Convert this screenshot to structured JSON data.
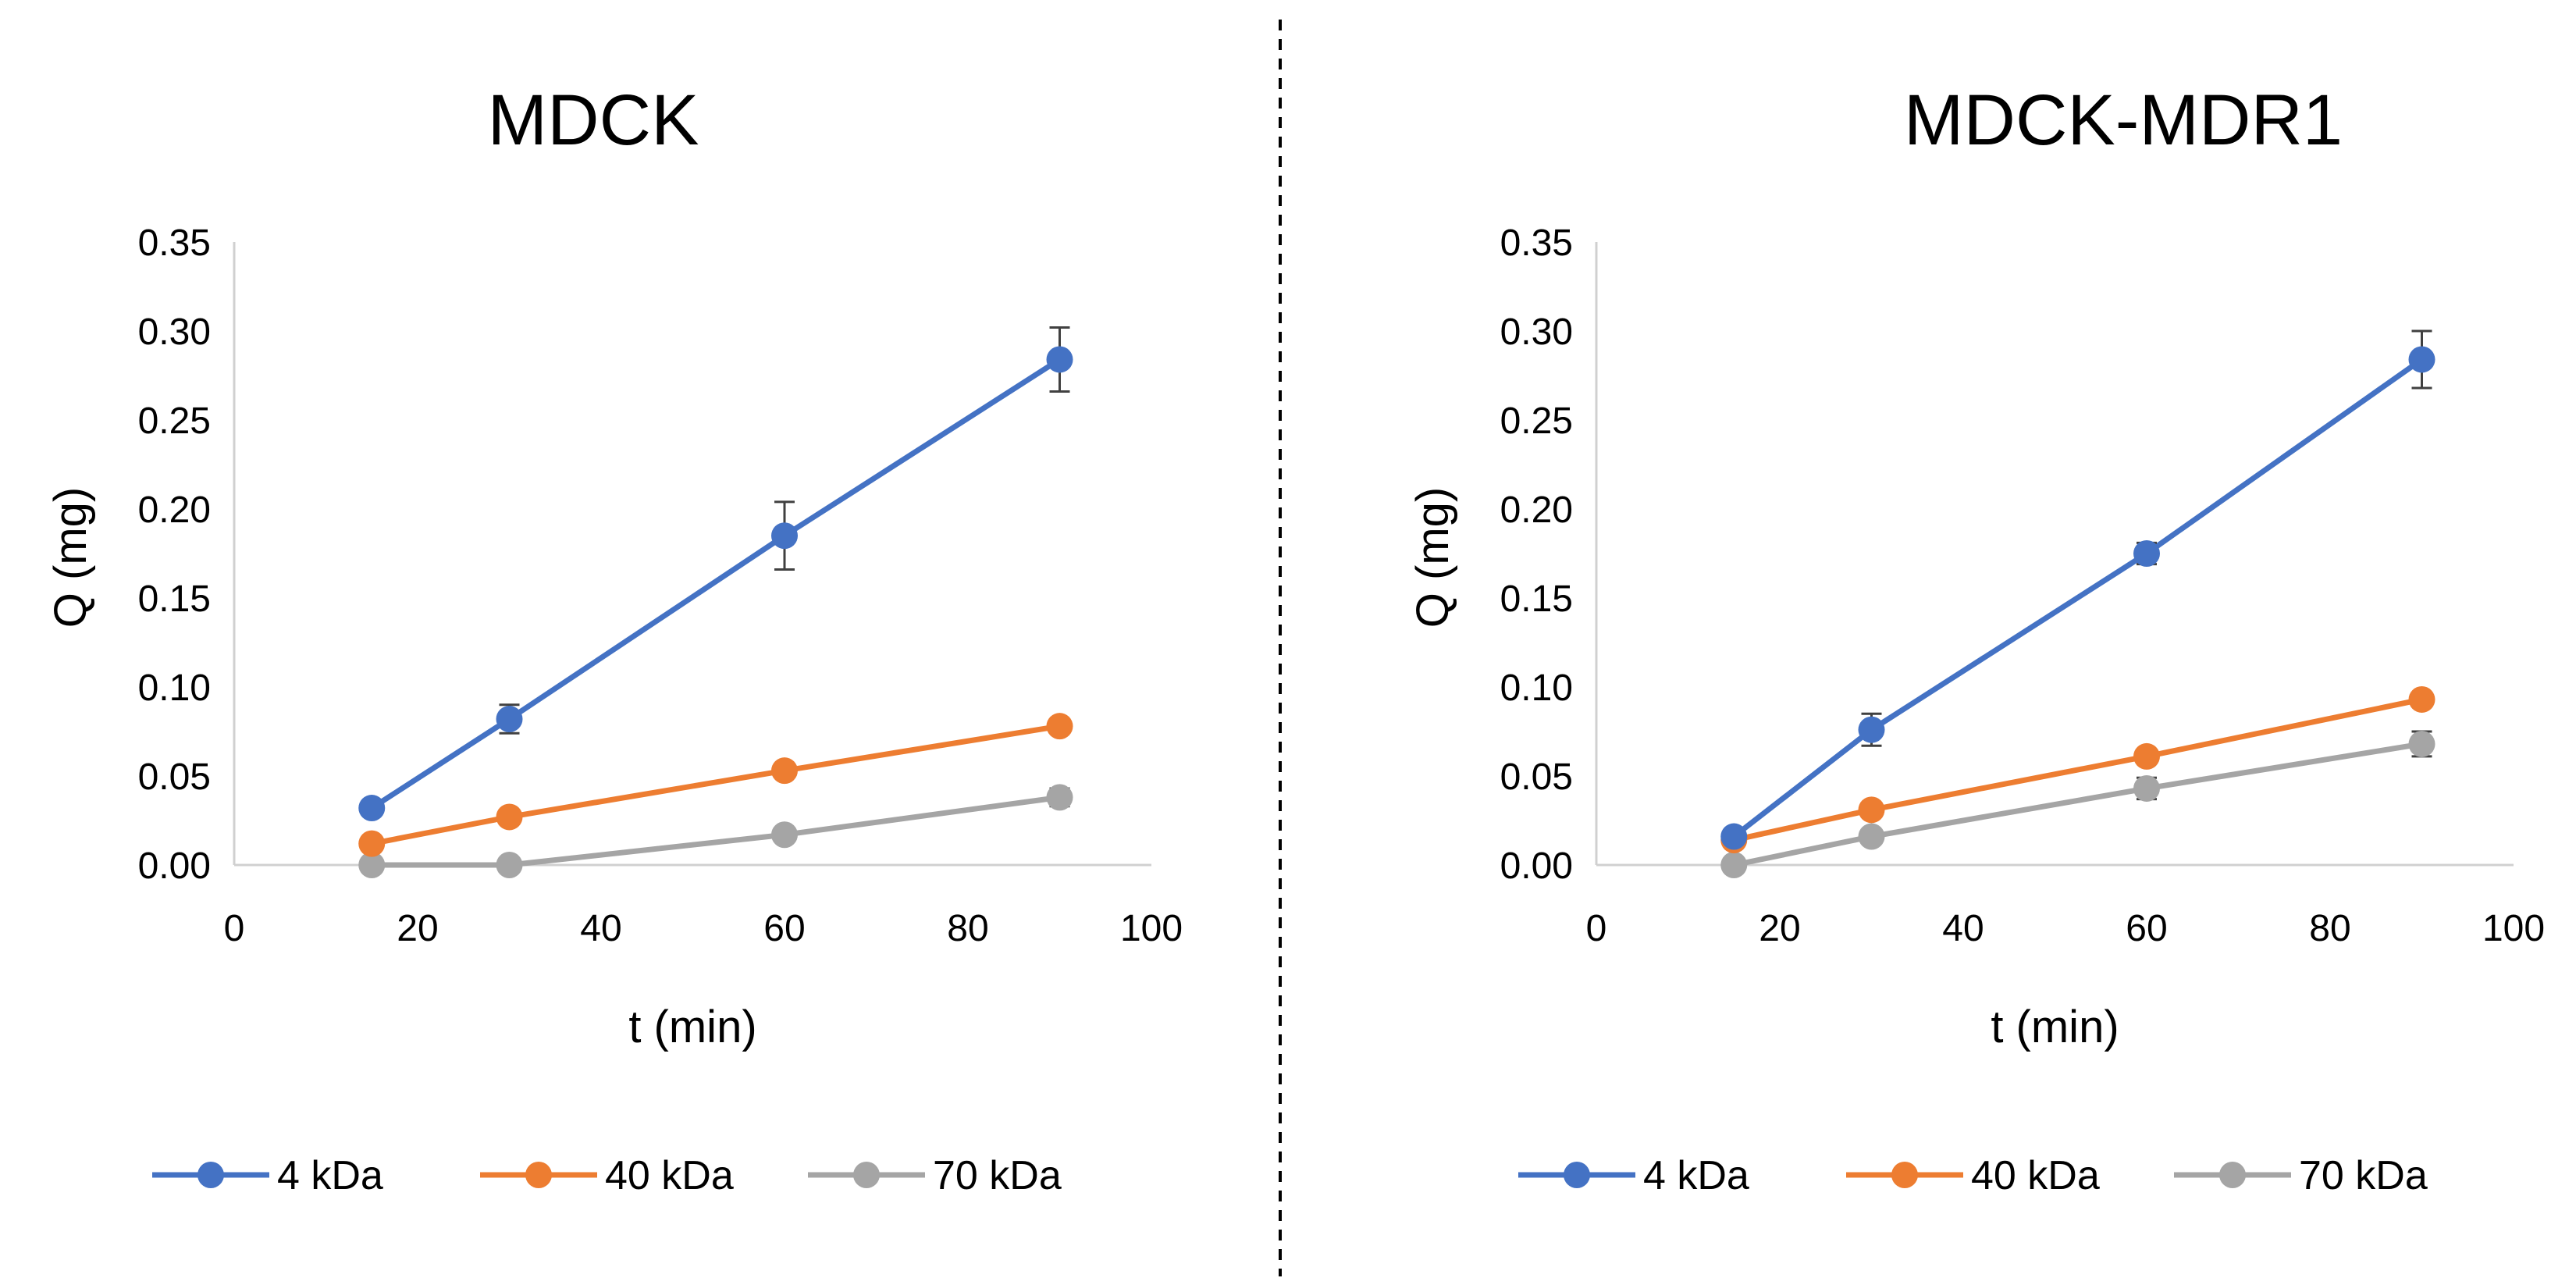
{
  "chart_data": [
    {
      "type": "line",
      "title": "MDCK",
      "xlabel": "t (min)",
      "ylabel": "Q (mg)",
      "xlim": [
        0,
        100
      ],
      "ylim": [
        0,
        0.35
      ],
      "x_ticks": [
        "0",
        "20",
        "40",
        "60",
        "80",
        "100"
      ],
      "y_ticks": [
        "0.00",
        "0.05",
        "0.10",
        "0.15",
        "0.20",
        "0.25",
        "0.30",
        "0.35"
      ],
      "legend_position": "bottom",
      "grid": false,
      "series": [
        {
          "name": "4 kDa",
          "color": "#4472C4",
          "x": [
            15,
            30,
            60,
            90
          ],
          "values": [
            0.032,
            0.082,
            0.185,
            0.284
          ],
          "errors": [
            0.004,
            0.008,
            0.019,
            0.018
          ]
        },
        {
          "name": "40 kDa",
          "color": "#ED7D31",
          "x": [
            15,
            30,
            60,
            90
          ],
          "values": [
            0.012,
            0.027,
            0.053,
            0.078
          ],
          "errors": [
            0.002,
            0.003,
            0.003,
            0.004
          ]
        },
        {
          "name": "70 kDa",
          "color": "#A5A5A5",
          "x": [
            15,
            30,
            60,
            90
          ],
          "values": [
            0.0,
            0.0,
            0.017,
            0.038
          ],
          "errors": [
            0.001,
            0.001,
            0.003,
            0.005
          ]
        }
      ]
    },
    {
      "type": "line",
      "title": "MDCK-MDR1",
      "xlabel": "t (min)",
      "ylabel": "Q (mg)",
      "xlim": [
        0,
        100
      ],
      "ylim": [
        0,
        0.35
      ],
      "x_ticks": [
        "0",
        "20",
        "40",
        "60",
        "80",
        "100"
      ],
      "y_ticks": [
        "0.00",
        "0.05",
        "0.10",
        "0.15",
        "0.20",
        "0.25",
        "0.30",
        "0.35"
      ],
      "legend_position": "bottom",
      "grid": false,
      "series": [
        {
          "name": "4 kDa",
          "color": "#4472C4",
          "x": [
            15,
            30,
            60,
            90
          ],
          "values": [
            0.016,
            0.076,
            0.175,
            0.284
          ],
          "errors": [
            0.002,
            0.009,
            0.006,
            0.016
          ]
        },
        {
          "name": "40 kDa",
          "color": "#ED7D31",
          "x": [
            15,
            30,
            60,
            90
          ],
          "values": [
            0.014,
            0.031,
            0.061,
            0.093
          ],
          "errors": [
            0.002,
            0.003,
            0.004,
            0.004
          ]
        },
        {
          "name": "70 kDa",
          "color": "#A5A5A5",
          "x": [
            15,
            30,
            60,
            90
          ],
          "values": [
            0.0,
            0.016,
            0.043,
            0.068
          ],
          "errors": [
            0.001,
            0.003,
            0.006,
            0.007
          ]
        }
      ]
    }
  ]
}
